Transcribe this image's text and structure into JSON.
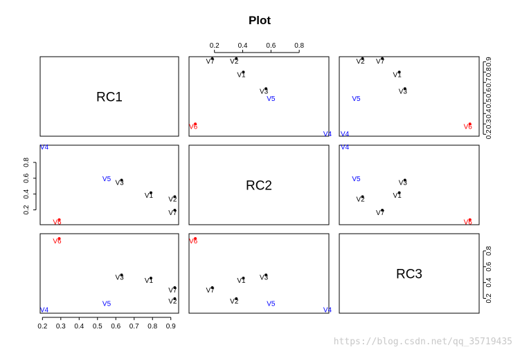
{
  "chart_data": {
    "type": "scatter",
    "title": "Plot",
    "variables": [
      "RC1",
      "RC2",
      "RC3"
    ],
    "points": [
      "V1",
      "V2",
      "V3",
      "V4",
      "V5",
      "V6",
      "V7"
    ],
    "point_colors": [
      "#000000",
      "#000000",
      "#000000",
      "#0000ff",
      "#0000ff",
      "#ff0000",
      "#000000"
    ],
    "point_markers": [
      true,
      true,
      true,
      false,
      false,
      true,
      true
    ],
    "values": {
      "RC1": [
        0.78,
        0.91,
        0.62,
        0.21,
        0.55,
        0.28,
        0.91
      ],
      "RC2": [
        0.39,
        0.34,
        0.55,
        1.0,
        0.6,
        0.05,
        0.17
      ],
      "RC3": [
        0.43,
        0.17,
        0.47,
        0.06,
        0.14,
        0.93,
        0.31
      ]
    },
    "ticks": {
      "RC1": [
        "0.2",
        "0.3",
        "0.4",
        "0.5",
        "0.6",
        "0.7",
        "0.8",
        "0.9"
      ],
      "RC2": [
        "0.2",
        "0.4",
        "0.6",
        "0.8"
      ],
      "RC3": [
        "0.2",
        "0.4",
        "0.6",
        "0.8"
      ]
    },
    "tick_values": {
      "RC1": [
        0.2,
        0.3,
        0.4,
        0.5,
        0.6,
        0.7,
        0.8,
        0.9
      ],
      "RC2": [
        0.2,
        0.4,
        0.6,
        0.8
      ],
      "RC3": [
        0.2,
        0.4,
        0.6,
        0.8
      ]
    },
    "ranges": {
      "RC1": [
        0.195,
        0.935
      ],
      "RC2": [
        0.03,
        1.0
      ],
      "RC3": [
        0.03,
        1.0
      ]
    },
    "grid": false
  },
  "watermark": "https://blog.csdn.net/qq_35719435"
}
